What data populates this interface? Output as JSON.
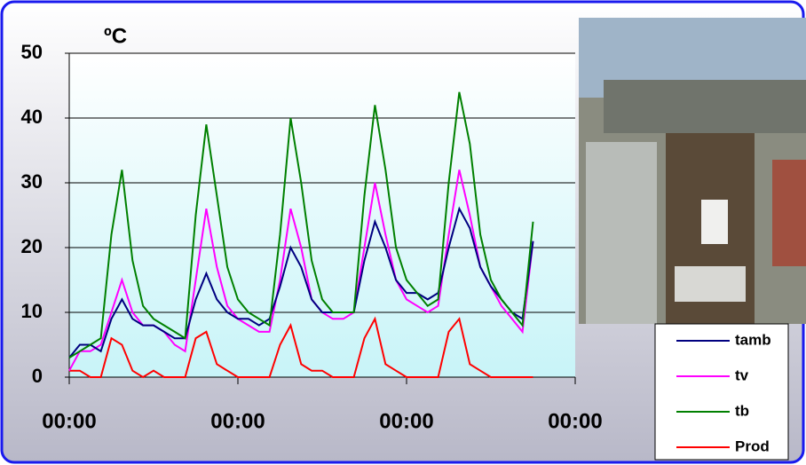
{
  "chart_data": {
    "type": "line",
    "y_label": "ºC",
    "x": [
      0,
      3,
      6,
      9,
      12,
      15,
      18,
      21,
      24,
      27,
      30,
      33,
      36,
      39,
      42,
      45,
      48,
      51,
      54,
      57,
      60,
      63,
      66,
      69,
      72,
      75,
      78,
      81,
      84,
      87,
      90,
      93,
      96,
      99,
      102,
      105,
      108,
      111,
      114,
      117,
      120,
      123,
      126,
      129,
      132
    ],
    "xlim": [
      0,
      144
    ],
    "xticks": [
      {
        "value": 0,
        "label": "00:00"
      },
      {
        "value": 48,
        "label": "00:00"
      },
      {
        "value": 96,
        "label": "00:00"
      },
      {
        "value": 144,
        "label": "00:00"
      }
    ],
    "ylim": [
      0,
      50
    ],
    "yticks": [
      0,
      10,
      20,
      30,
      40,
      50
    ],
    "grid": true,
    "series": [
      {
        "name": "tamb",
        "color": "#000080",
        "values": [
          3,
          5,
          5,
          4,
          9,
          12,
          9,
          8,
          8,
          7,
          6,
          6,
          12,
          16,
          12,
          10,
          9,
          9,
          8,
          9,
          14,
          20,
          17,
          12,
          10,
          10,
          10,
          10,
          18,
          24,
          20,
          15,
          13,
          13,
          12,
          13,
          20,
          26,
          23,
          17,
          14,
          12,
          10,
          9,
          21
        ]
      },
      {
        "name": "tv",
        "color": "#ff00ff",
        "values": [
          1,
          4,
          4,
          5,
          10,
          15,
          10,
          8,
          8,
          7,
          5,
          4,
          15,
          26,
          17,
          11,
          9,
          8,
          7,
          7,
          15,
          26,
          20,
          12,
          10,
          9,
          9,
          10,
          20,
          30,
          22,
          15,
          12,
          11,
          10,
          11,
          22,
          32,
          25,
          17,
          14,
          11,
          9,
          7,
          21
        ]
      },
      {
        "name": "tb",
        "color": "#008000",
        "values": [
          3,
          4,
          5,
          6,
          22,
          32,
          18,
          11,
          9,
          8,
          7,
          6,
          25,
          39,
          28,
          17,
          12,
          10,
          9,
          8,
          22,
          40,
          30,
          18,
          12,
          10,
          10,
          10,
          28,
          42,
          32,
          20,
          15,
          13,
          11,
          12,
          30,
          44,
          36,
          22,
          15,
          12,
          10,
          8,
          24
        ]
      },
      {
        "name": "Prod",
        "color": "#ff0000",
        "values": [
          1,
          1,
          0,
          0,
          6,
          5,
          1,
          0,
          1,
          0,
          0,
          0,
          6,
          7,
          2,
          1,
          0,
          0,
          0,
          0,
          5,
          8,
          2,
          1,
          1,
          0,
          0,
          0,
          6,
          9,
          2,
          1,
          0,
          0,
          0,
          0,
          7,
          9,
          2,
          1,
          0,
          0,
          0,
          0,
          0
        ]
      }
    ]
  }
}
